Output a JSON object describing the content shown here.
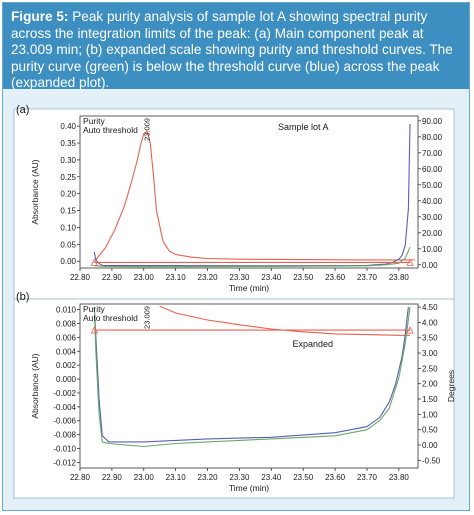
{
  "caption": {
    "figure_label": "Figure 5:",
    "text": "Peak purity analysis of sample lot A showing spectral purity across the integration limits of the peak: (a) Main component peak at 23.009 min; (b) expanded scale showing purity and threshold curves. The purity curve (green) is below the threshold curve (blue) across the peak (expanded plot)."
  },
  "colors": {
    "absorbance": "#e8604c",
    "purity": "#6aa86a",
    "threshold": "#5a5fb0",
    "header": "#3d8fc2",
    "panel_bg": "#e4f0f7"
  },
  "chart_data": [
    {
      "type": "line",
      "panel_label": "(a)",
      "title": "",
      "xlabel": "Time (min)",
      "ylabel": "Absorbance (AU)",
      "y2label": "",
      "legend": [
        "Purity",
        "Auto threshold"
      ],
      "legend_position": "top-left",
      "annotation": "Sample lot A",
      "peak_label": "23.009",
      "xlim": [
        22.8,
        23.86
      ],
      "ylim": [
        -0.02,
        0.43
      ],
      "y2lim": [
        -2,
        93
      ],
      "x_ticks": [
        "22.80",
        "22.90",
        "23.00",
        "23.10",
        "23.20",
        "23.30",
        "23.40",
        "23.50",
        "23.60",
        "23.70",
        "23.80"
      ],
      "y_ticks": [
        "0.40",
        "0.35",
        "0.30",
        "0.25",
        "0.20",
        "0.15",
        "0.10",
        "0.05",
        "0.00"
      ],
      "y2_ticks": [
        "90.00",
        "80.00",
        "70.00",
        "60.00",
        "50.00",
        "40.00",
        "30.00",
        "20.00",
        "10.00",
        "0.00"
      ],
      "integration_limits": [
        22.845,
        23.835
      ],
      "series": [
        {
          "axis": "left",
          "color_key": "absorbance",
          "x": [
            22.85,
            22.88,
            22.91,
            22.94,
            22.96,
            22.98,
            22.99,
            23.0,
            23.01,
            23.02,
            23.03,
            23.04,
            23.06,
            23.08,
            23.1,
            23.15,
            23.2,
            23.3,
            23.5,
            23.7,
            23.85
          ],
          "y": [
            0.005,
            0.04,
            0.095,
            0.165,
            0.23,
            0.3,
            0.345,
            0.378,
            0.385,
            0.35,
            0.26,
            0.15,
            0.06,
            0.03,
            0.02,
            0.012,
            0.008,
            0.006,
            0.005,
            0.004,
            0.004
          ]
        },
        {
          "axis": "right",
          "color_key": "threshold",
          "x": [
            22.845,
            22.85,
            22.86,
            22.87,
            23.0,
            23.4,
            23.7,
            23.76,
            23.78,
            23.8,
            23.81,
            23.82,
            23.83,
            23.835
          ],
          "y": [
            8.0,
            3.0,
            0.8,
            -0.4,
            -0.5,
            -0.6,
            -0.4,
            0.5,
            1.5,
            3.5,
            6.0,
            12.0,
            35.0,
            88.0
          ]
        },
        {
          "axis": "right",
          "color_key": "purity",
          "x": [
            22.845,
            22.86,
            22.88,
            23.0,
            23.4,
            23.7,
            23.76,
            23.8,
            23.82,
            23.835
          ],
          "y": [
            -0.6,
            -0.7,
            -1.0,
            -1.2,
            -1.0,
            -0.6,
            0.0,
            1.0,
            4.0,
            11.0
          ]
        },
        {
          "axis": "right",
          "color_key": "absorbance",
          "x": [
            22.845,
            23.835
          ],
          "y": [
            1.5,
            1.5
          ]
        }
      ]
    },
    {
      "type": "line",
      "panel_label": "(b)",
      "title": "",
      "xlabel": "Time (min)",
      "ylabel": "Absorbance (AU)",
      "y2label": "Degrees",
      "legend": [
        "Purity",
        "Auto threshold"
      ],
      "legend_position": "top-left",
      "annotation": "Expanded",
      "peak_label": "23.009",
      "xlim": [
        22.8,
        23.86
      ],
      "ylim": [
        -0.0128,
        0.0108
      ],
      "y2lim": [
        -0.75,
        4.6
      ],
      "x_ticks": [
        "22.80",
        "22.90",
        "23.00",
        "23.10",
        "23.20",
        "23.30",
        "23.40",
        "23.50",
        "23.60",
        "23.70",
        "23.80"
      ],
      "y_ticks": [
        "0.010",
        "0.008",
        "0.006",
        "0.004",
        "0.002",
        "0.000",
        "-0.002",
        "-0.004",
        "-0.006",
        "-0.008",
        "-0.010",
        "-0.012"
      ],
      "y2_ticks": [
        "4.50",
        "4.00",
        "3.50",
        "3.00",
        "2.50",
        "2.00",
        "1.50",
        "1.00",
        "0.50",
        "0.00",
        "-0.50"
      ],
      "integration_limits": [
        22.845,
        23.835
      ],
      "series": [
        {
          "axis": "left",
          "color_key": "absorbance",
          "x": [
            23.05,
            23.1,
            23.2,
            23.3,
            23.4,
            23.5,
            23.6,
            23.7,
            23.8,
            23.835
          ],
          "y": [
            0.0105,
            0.0095,
            0.0085,
            0.0078,
            0.0072,
            0.0068,
            0.0065,
            0.0064,
            0.0063,
            0.0063
          ]
        },
        {
          "axis": "right",
          "color_key": "absorbance",
          "x": [
            22.845,
            23.835
          ],
          "y": [
            3.75,
            3.75
          ]
        },
        {
          "axis": "right",
          "color_key": "threshold",
          "x": [
            22.845,
            22.85,
            22.86,
            22.87,
            22.89,
            23.0,
            23.2,
            23.4,
            23.6,
            23.7,
            23.74,
            23.77,
            23.79,
            23.81,
            23.82,
            23.83
          ],
          "y": [
            4.5,
            3.5,
            1.5,
            0.3,
            0.1,
            0.1,
            0.2,
            0.25,
            0.4,
            0.6,
            0.9,
            1.4,
            2.0,
            2.9,
            3.6,
            4.5
          ]
        },
        {
          "axis": "right",
          "color_key": "purity",
          "x": [
            22.845,
            22.85,
            22.86,
            22.87,
            22.89,
            23.0,
            23.1,
            23.2,
            23.4,
            23.6,
            23.7,
            23.74,
            23.77,
            23.8,
            23.82,
            23.835
          ],
          "y": [
            4.5,
            3.0,
            1.0,
            0.1,
            0.05,
            -0.05,
            0.05,
            0.1,
            0.2,
            0.3,
            0.5,
            0.8,
            1.2,
            2.2,
            3.3,
            4.5
          ]
        }
      ]
    }
  ]
}
